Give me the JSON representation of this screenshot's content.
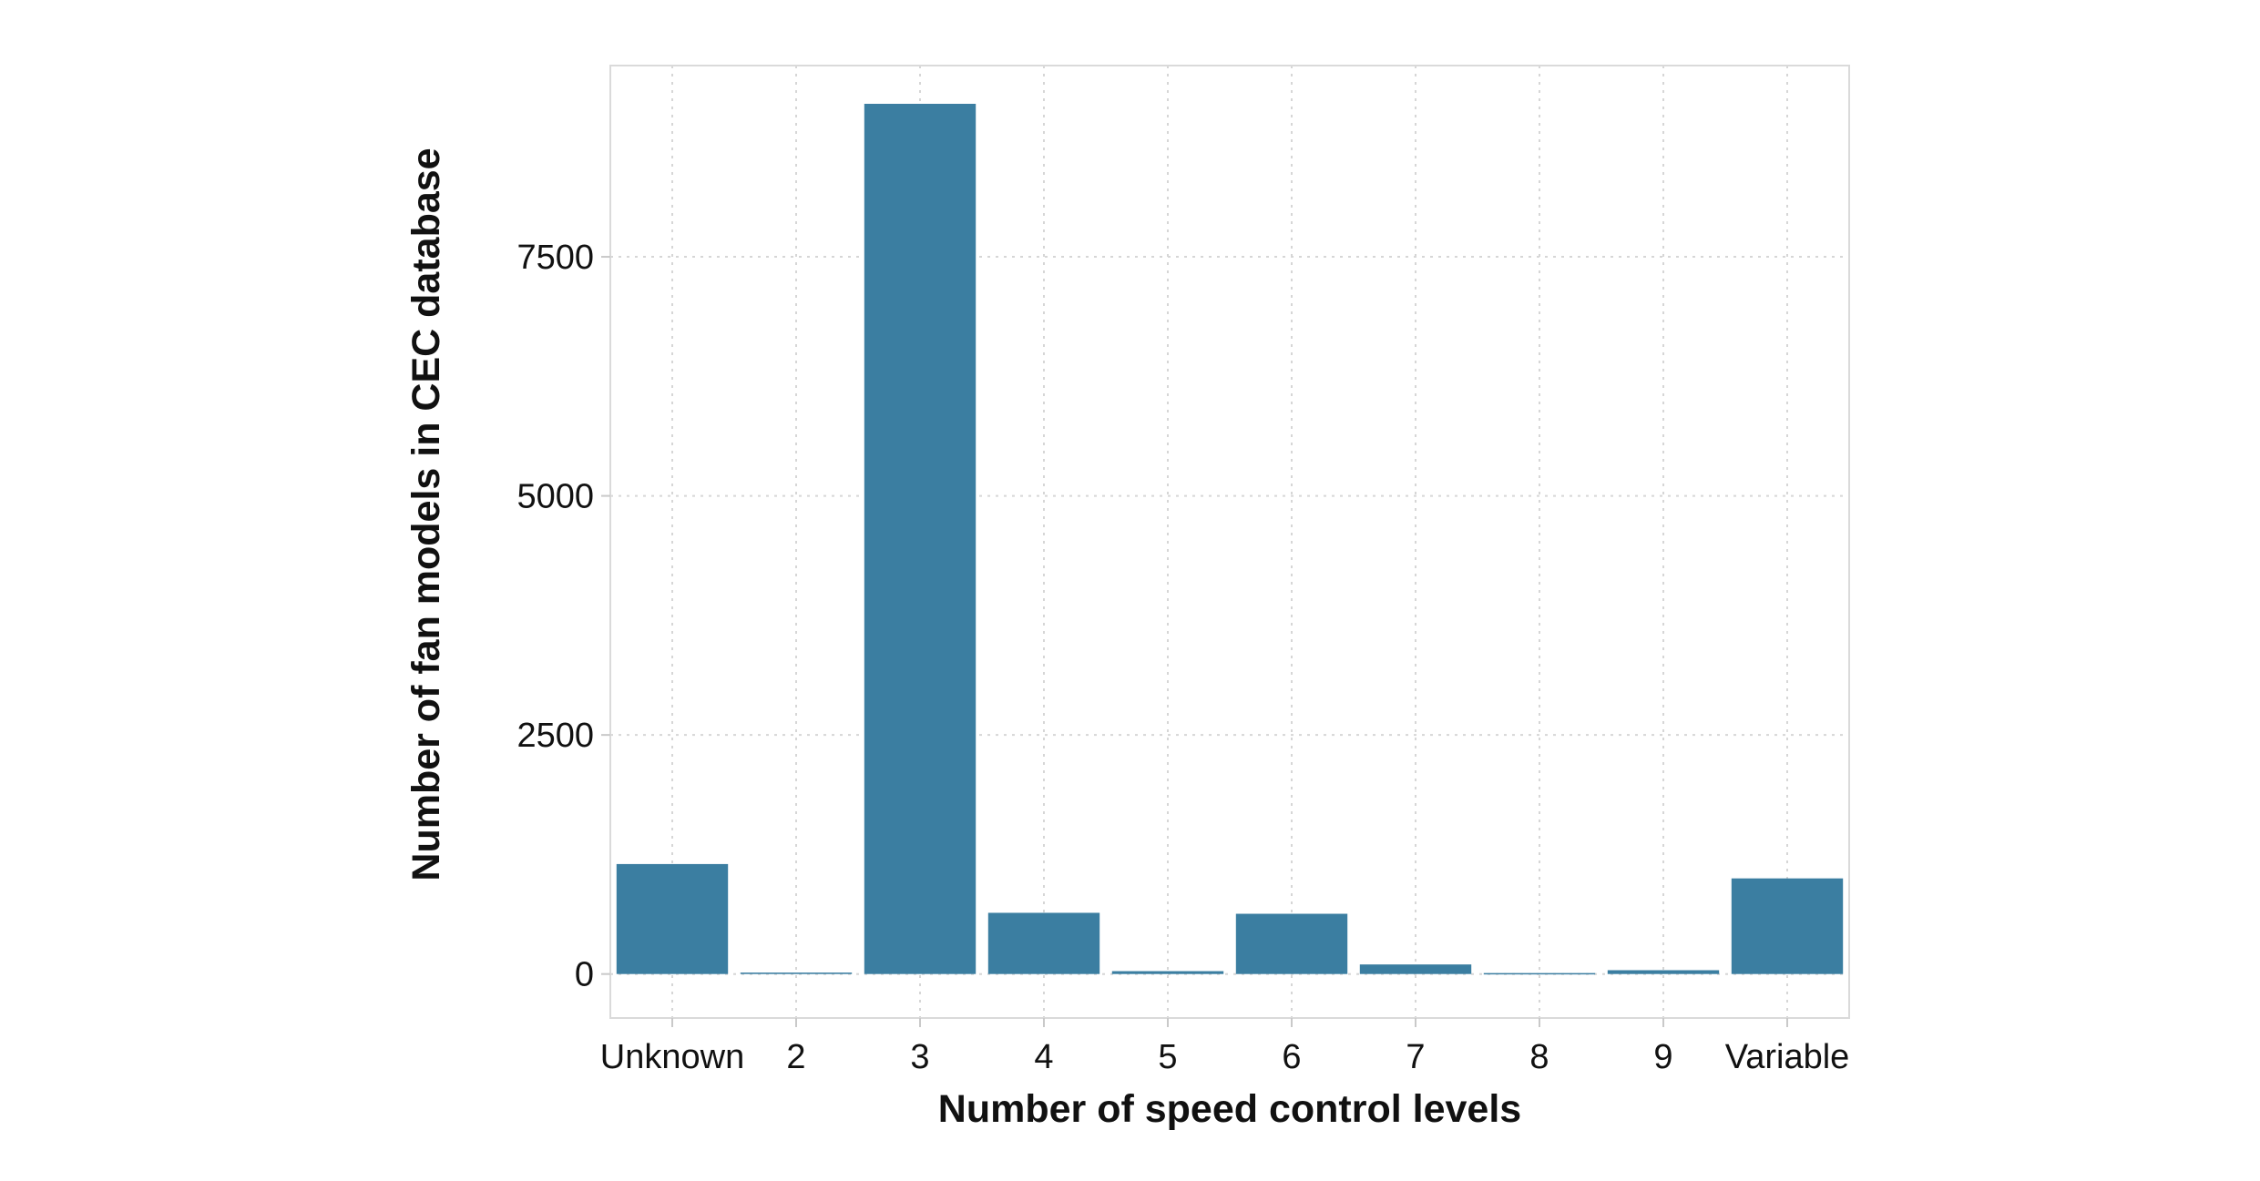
{
  "chart_data": {
    "type": "bar",
    "xlabel": "Number of speed control levels",
    "ylabel": "Number of fan models in CEC database",
    "categories": [
      "Unknown",
      "2",
      "3",
      "4",
      "5",
      "6",
      "7",
      "8",
      "9",
      "Variable"
    ],
    "values": [
      1150,
      15,
      9100,
      640,
      30,
      630,
      100,
      10,
      40,
      1000
    ],
    "ylim": [
      -460,
      9500
    ],
    "yticks": [
      0,
      2500,
      5000,
      7500
    ],
    "ytick_labels": [
      "0",
      "2500",
      "5000",
      "7500"
    ],
    "grid": true,
    "legend": "none",
    "colors": {
      "bar": "#3b7ea1"
    }
  }
}
